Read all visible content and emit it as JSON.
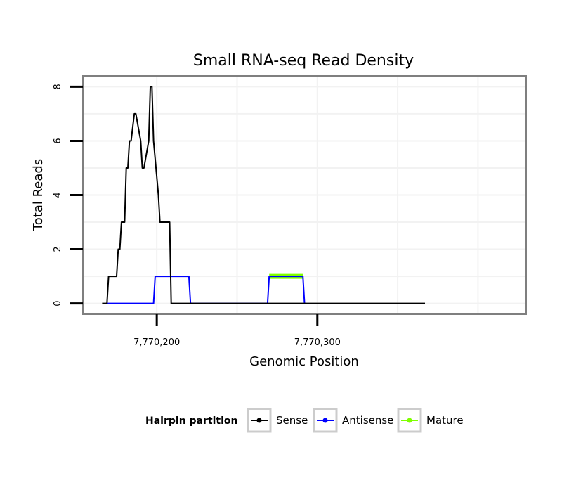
{
  "chart_data": {
    "type": "line",
    "title": "Small RNA-seq Read Density",
    "xlabel": "Genomic Position",
    "ylabel": "Total Reads",
    "xlim": [
      7770154,
      7770430
    ],
    "ylim": [
      -0.4,
      8.4
    ],
    "grid": true,
    "x_ticks": [
      {
        "value": 7770200,
        "label": "7,770,200"
      },
      {
        "value": 7770300,
        "label": "7,770,300"
      }
    ],
    "y_ticks": [
      {
        "value": 0,
        "label": "0"
      },
      {
        "value": 2,
        "label": "2"
      },
      {
        "value": 4,
        "label": "4"
      },
      {
        "value": 6,
        "label": "6"
      },
      {
        "value": 8,
        "label": "8"
      }
    ],
    "legend": {
      "title": "Hairpin partition",
      "position": "bottom",
      "entries": [
        "Sense",
        "Antisense",
        "Mature"
      ]
    },
    "series": [
      {
        "name": "Sense",
        "color": "#000000",
        "x": [
          7770166,
          7770169,
          7770170,
          7770175,
          7770176,
          7770177,
          7770178,
          7770180,
          7770181,
          7770182,
          7770183,
          7770184,
          7770186,
          7770187,
          7770190,
          7770191,
          7770192,
          7770195,
          7770196,
          7770197,
          7770198,
          7770201,
          7770202,
          7770205,
          7770208,
          7770209,
          7770210,
          7770367
        ],
        "y": [
          0,
          0,
          1,
          1,
          2,
          2,
          3,
          3,
          5,
          5,
          6,
          6,
          7,
          7,
          6,
          5,
          5,
          6,
          8,
          8,
          6,
          4,
          3,
          3,
          3,
          0,
          0,
          0
        ]
      },
      {
        "name": "Antisense",
        "color": "#0000ff",
        "x": [
          7770169,
          7770198,
          7770199,
          7770220,
          7770221,
          7770269,
          7770270,
          7770291,
          7770292
        ],
        "y": [
          0,
          0,
          1,
          1,
          0,
          0,
          1,
          1,
          0
        ]
      },
      {
        "name": "Mature",
        "color": "#7fff00",
        "x": [
          7770270,
          7770291
        ],
        "y": [
          1,
          1
        ]
      }
    ]
  }
}
